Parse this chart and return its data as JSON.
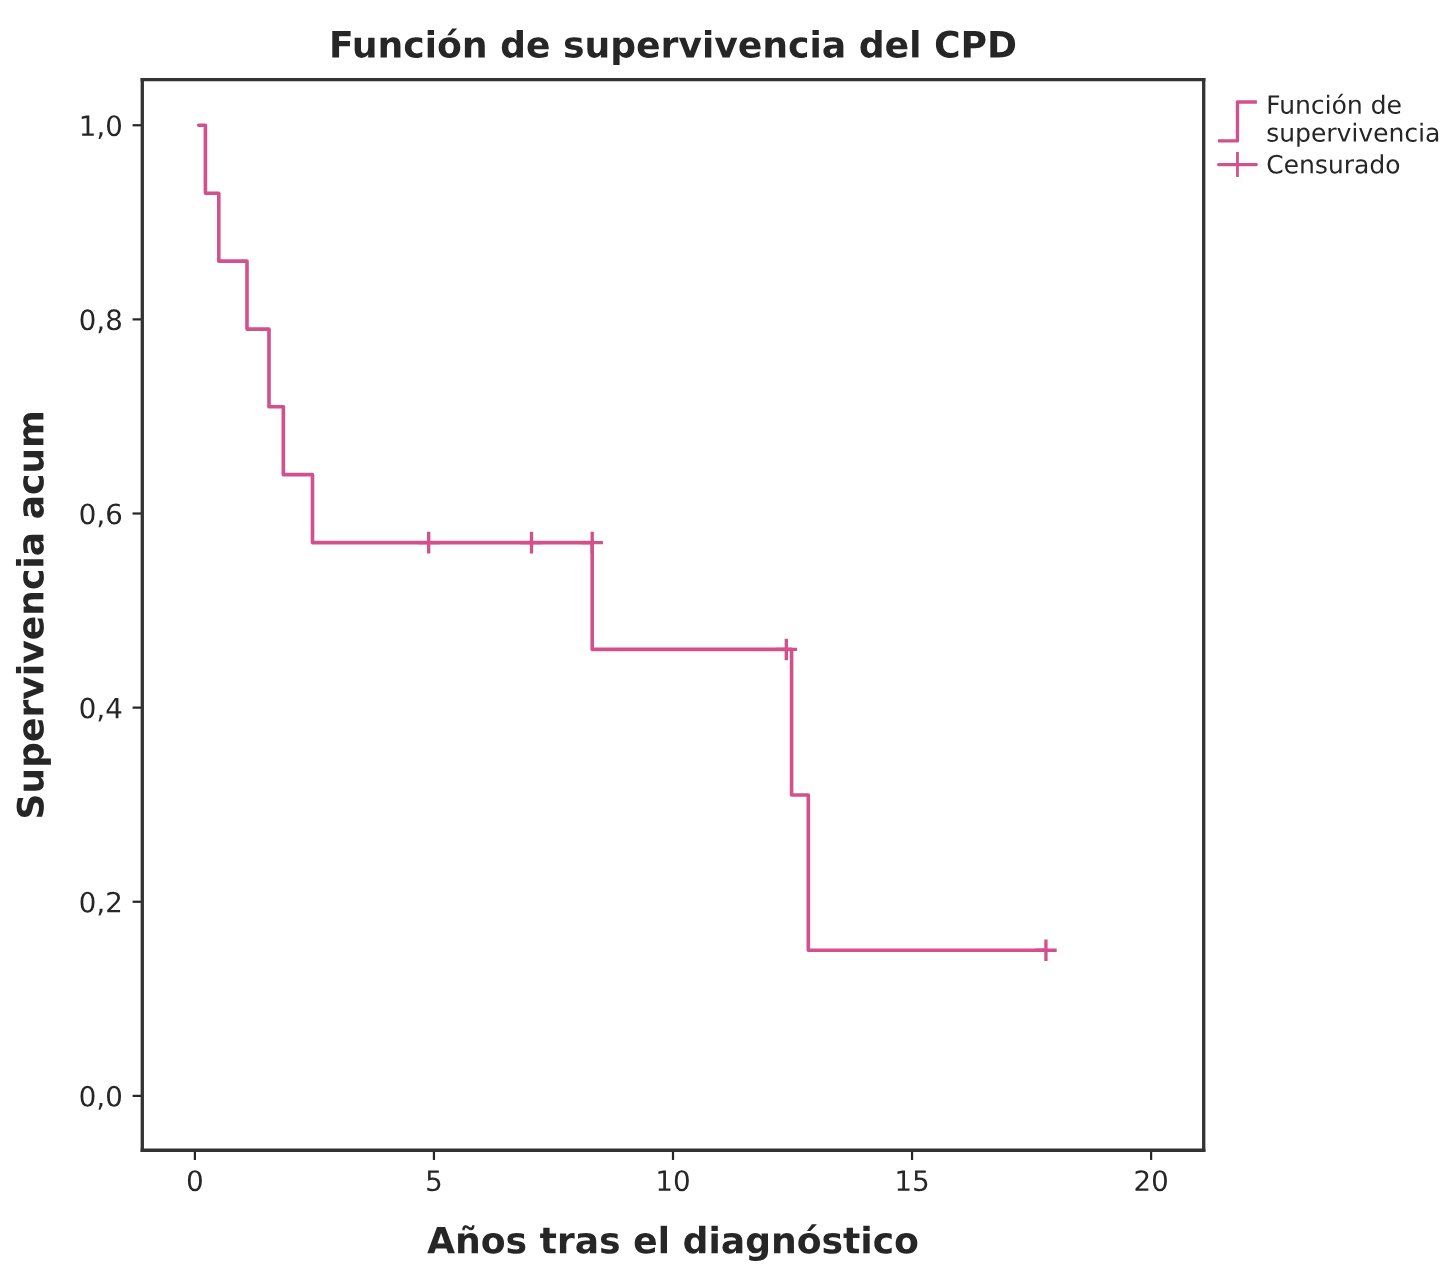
{
  "chart_data": {
    "type": "step",
    "title": "Función de supervivencia del CPD",
    "xlabel": "Años tras el diagnóstico",
    "ylabel": "Supervivencia acum",
    "xlim": [
      -1.1,
      21.1
    ],
    "xticks": [
      0,
      5,
      10,
      15,
      20
    ],
    "ylim": [
      -0.056,
      1.047
    ],
    "yticks": [
      {
        "value": 0.0,
        "label": "0,0"
      },
      {
        "value": 0.2,
        "label": "0,2"
      },
      {
        "value": 0.4,
        "label": "0,4"
      },
      {
        "value": 0.6,
        "label": "0,6"
      },
      {
        "value": 0.8,
        "label": "0,8"
      },
      {
        "value": 1.0,
        "label": "1,0"
      }
    ],
    "grid": false,
    "legend": "top right",
    "series": [
      {
        "name": "Función de\nsupervivencia",
        "marker": "none",
        "color": "#d4508c",
        "x": [
          0.08,
          0.22,
          0.5,
          1.09,
          1.55,
          1.85,
          2.46,
          8.31,
          12.48,
          12.83,
          17.8
        ],
        "values": [
          1.0,
          0.93,
          0.86,
          0.79,
          0.71,
          0.64,
          0.57,
          0.46,
          0.31,
          0.15,
          0.15
        ]
      },
      {
        "name": "Censurado",
        "type": "scatter",
        "marker": "cross",
        "color": "#d4508c",
        "x": [
          4.89,
          7.04,
          8.31,
          12.37,
          17.8
        ],
        "values": [
          0.57,
          0.57,
          0.57,
          0.46,
          0.15
        ]
      }
    ]
  }
}
